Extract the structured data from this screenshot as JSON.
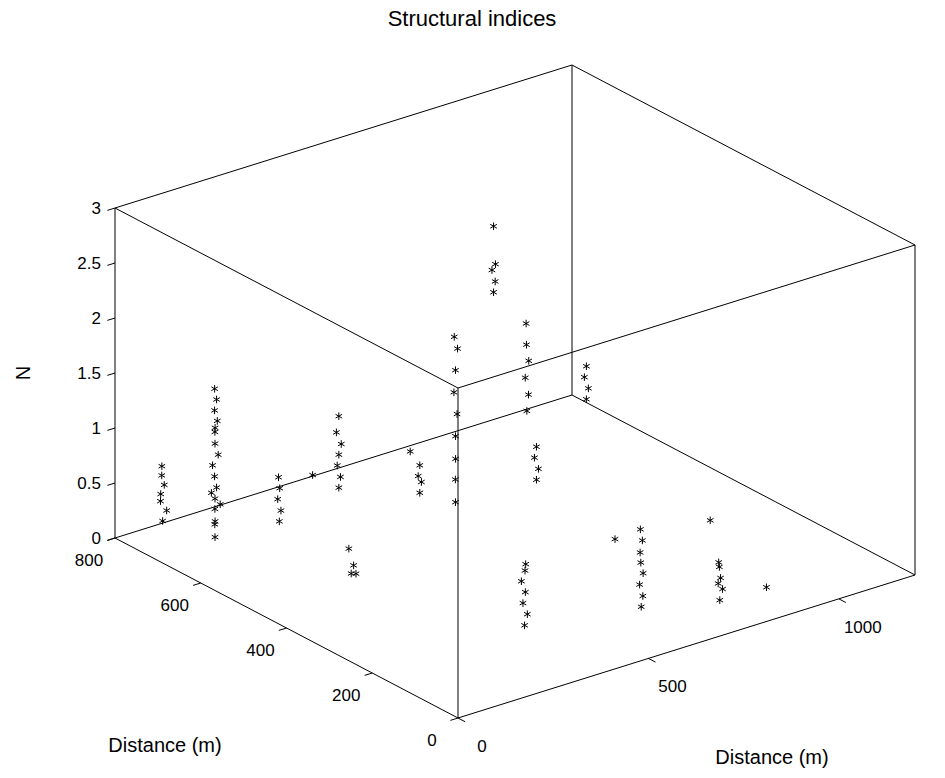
{
  "chart_data": {
    "type": "scatter3d",
    "title": "Structural indices",
    "xlabel": "Distance (m)",
    "ylabel": "Distance (m)",
    "zlabel": "N",
    "marker": "star",
    "color": "#000000",
    "xlim": [
      0,
      1200
    ],
    "ylim": [
      0,
      800
    ],
    "zlim": [
      0,
      3
    ],
    "xticks": [
      0,
      500,
      1000
    ],
    "yticks": [
      0,
      200,
      400,
      600,
      800
    ],
    "zticks": [
      0,
      0.5,
      1,
      1.5,
      2,
      2.5,
      3
    ],
    "x": [
      80,
      85,
      80,
      75,
      82,
      80,
      78,
      150,
      155,
      148,
      152,
      158,
      150,
      145,
      153,
      150,
      147,
      155,
      150,
      152,
      148,
      156,
      150,
      153,
      149,
      250,
      252,
      248,
      250,
      253,
      247,
      250,
      260,
      255,
      265,
      250,
      150,
      152,
      148,
      151,
      149,
      350,
      352,
      348,
      350,
      600,
      602,
      598,
      605,
      600,
      500,
      502,
      498,
      500,
      503,
      497,
      500,
      502,
      499,
      400,
      405,
      398,
      402,
      395,
      400,
      404,
      650,
      652,
      648,
      655,
      650,
      646,
      653,
      650,
      800,
      805,
      798,
      802,
      800,
      796,
      800,
      802,
      798,
      805,
      800,
      797,
      900,
      903,
      897,
      900,
      600,
      603,
      597,
      600,
      750,
      1000,
      900,
      550,
      350
    ],
    "y": [
      760,
      755,
      765,
      760,
      758,
      762,
      760,
      700,
      705,
      698,
      702,
      695,
      700,
      704,
      699,
      701,
      703,
      697,
      700,
      702,
      698,
      700,
      701,
      699,
      700,
      500,
      498,
      502,
      500,
      497,
      503,
      500,
      480,
      470,
      490,
      460,
      550,
      548,
      552,
      550,
      551,
      400,
      398,
      402,
      400,
      450,
      448,
      452,
      450,
      450,
      450,
      452,
      448,
      450,
      449,
      451,
      450,
      447,
      452,
      200,
      198,
      202,
      200,
      203,
      199,
      201,
      150,
      148,
      152,
      150,
      151,
      149,
      150,
      152,
      100,
      98,
      102,
      100,
      101,
      99,
      550,
      548,
      552,
      550,
      551,
      549,
      500,
      498,
      502,
      500,
      350,
      348,
      352,
      350,
      300,
      300,
      80,
      600,
      650
    ],
    "z": [
      0.15,
      0.25,
      0.32,
      0.4,
      0.48,
      0.56,
      0.65,
      0.05,
      0.15,
      0.2,
      0.3,
      0.35,
      0.4,
      0.45,
      0.5,
      0.6,
      0.7,
      0.8,
      0.9,
      1.0,
      1.05,
      1.1,
      1.2,
      1.3,
      1.4,
      0.8,
      0.9,
      1.0,
      1.1,
      1.2,
      1.3,
      1.45,
      0.05,
      0.15,
      0.25,
      0.1,
      0.5,
      0.6,
      0.7,
      0.8,
      0.9,
      0.85,
      0.95,
      1.0,
      1.1,
      2.3,
      2.4,
      2.5,
      2.55,
      2.9,
      0.5,
      0.7,
      0.9,
      1.1,
      1.3,
      1.5,
      1.7,
      1.9,
      2.0,
      0,
      0.1,
      0.2,
      0.3,
      0.4,
      0.5,
      0.55,
      0,
      0.1,
      0.2,
      0.3,
      0.4,
      0.5,
      0.6,
      0.7,
      0,
      0.1,
      0.15,
      0.2,
      0.3,
      0.35,
      0.8,
      0.95,
      1.1,
      1.25,
      1.4,
      1.6,
      0.9,
      1.0,
      1.1,
      1.2,
      0.8,
      0.9,
      1.0,
      1.1,
      0.2,
      0.1,
      0.05,
      0.6,
      0.5
    ]
  }
}
